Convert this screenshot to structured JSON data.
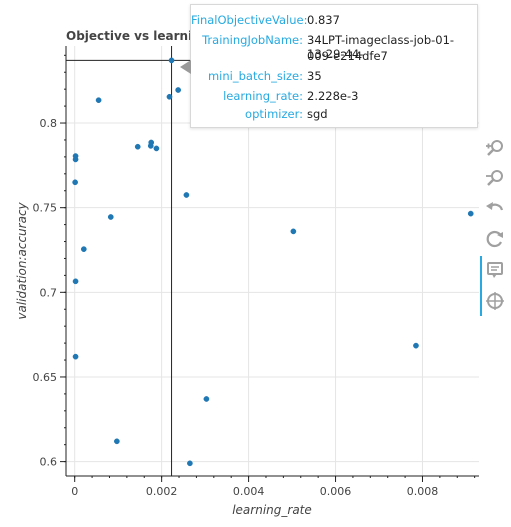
{
  "chart_data": {
    "type": "scatter",
    "title": "Objective vs learning_rate",
    "xlabel": "learning_rate",
    "ylabel": "validation:accuracy",
    "xlim": [
      -0.0002,
      0.0093
    ],
    "ylim": [
      0.5915,
      0.8455
    ],
    "x_ticks": [
      0,
      0.002,
      0.004,
      0.006,
      0.008
    ],
    "x_tick_labels": [
      "0",
      "0.002",
      "0.004",
      "0.006",
      "0.008"
    ],
    "y_ticks": [
      0.6,
      0.65,
      0.7,
      0.75,
      0.8
    ],
    "y_tick_labels": [
      "0.6",
      "0.65",
      "0.7",
      "0.75",
      "0.8"
    ],
    "grid": true,
    "point_color": "#1f77b4",
    "crosshair": {
      "x": 0.002228,
      "y": 0.837
    },
    "points": [
      {
        "x": 0.002228,
        "y": 0.837
      },
      {
        "x": 0.00055,
        "y": 0.8135
      },
      {
        "x": 0.00238,
        "y": 0.8195
      },
      {
        "x": 0.00218,
        "y": 0.8155
      },
      {
        "x": 2e-05,
        "y": 0.7805
      },
      {
        "x": 2e-05,
        "y": 0.7785
      },
      {
        "x": 1e-05,
        "y": 0.765
      },
      {
        "x": 0.00145,
        "y": 0.786
      },
      {
        "x": 0.00175,
        "y": 0.7865
      },
      {
        "x": 0.00176,
        "y": 0.7885
      },
      {
        "x": 0.00188,
        "y": 0.785
      },
      {
        "x": 0.00257,
        "y": 0.7575
      },
      {
        "x": 0.00083,
        "y": 0.7445
      },
      {
        "x": 0.00021,
        "y": 0.7255
      },
      {
        "x": 2e-05,
        "y": 0.7065
      },
      {
        "x": 0.00503,
        "y": 0.736
      },
      {
        "x": 0.00911,
        "y": 0.7465
      },
      {
        "x": 2e-05,
        "y": 0.662
      },
      {
        "x": 0.00785,
        "y": 0.6685
      },
      {
        "x": 0.00303,
        "y": 0.637
      },
      {
        "x": 0.00097,
        "y": 0.612
      },
      {
        "x": 0.00265,
        "y": 0.599
      }
    ]
  },
  "tooltip": {
    "rows": [
      {
        "key": "FinalObjectiveValue:",
        "value": "0.837"
      },
      {
        "key": "TrainingJobName:",
        "value": "34LPT-imageclass-job-01-13-29-44-",
        "value2": "009-e214dfe7"
      },
      {
        "key": "mini_batch_size:",
        "value": "35"
      },
      {
        "key": "learning_rate:",
        "value": "2.228e-3"
      },
      {
        "key": "optimizer:",
        "value": "sgd"
      }
    ]
  },
  "toolbar": {
    "accent_color": "#26aae1",
    "tools": [
      {
        "name": "zoom-in-tool-icon"
      },
      {
        "name": "zoom-out-tool-icon"
      },
      {
        "name": "undo-tool-icon"
      },
      {
        "name": "reset-tool-icon"
      },
      {
        "name": "hover-tool-icon"
      },
      {
        "name": "crosshair-tool-icon"
      }
    ]
  }
}
